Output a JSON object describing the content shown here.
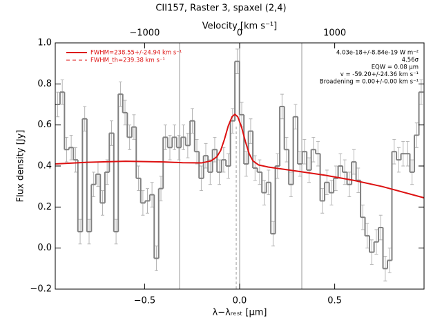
{
  "chart_data": {
    "type": "spectrum",
    "title": "CII157, Raster 3, spaxel (2,4)",
    "x_label": "λ−λᵣₑₛₜ [μm]",
    "x2_label": "Velocity [km s⁻¹]",
    "y_label": "Flux density [Jy]",
    "xlim": [
      -0.97,
      0.97
    ],
    "x2lim": [
      -1940,
      1940
    ],
    "ylim": [
      -0.2,
      1.0
    ],
    "xticks": [
      {
        "value": -0.5,
        "label": "−0.5"
      },
      {
        "value": 0,
        "label": "0.0"
      },
      0.5
    ],
    "x2ticks": [
      {
        "value": -1000,
        "label": "−1000"
      },
      0,
      1000
    ],
    "yticks": [
      {
        "value": -0.2,
        "label": "−0.2"
      },
      {
        "value": 0,
        "label": "0.0"
      },
      0.2,
      0.4,
      0.6,
      0.8,
      {
        "value": 1,
        "label": "1.0"
      }
    ],
    "x": [
      -0.957,
      -0.933,
      -0.91,
      -0.886,
      -0.863,
      -0.839,
      -0.815,
      -0.792,
      -0.768,
      -0.745,
      -0.721,
      -0.697,
      -0.674,
      -0.65,
      -0.627,
      -0.603,
      -0.579,
      -0.556,
      -0.532,
      -0.509,
      -0.485,
      -0.461,
      -0.438,
      -0.414,
      -0.391,
      -0.367,
      -0.343,
      -0.32,
      -0.296,
      -0.273,
      -0.249,
      -0.225,
      -0.202,
      -0.178,
      -0.155,
      -0.131,
      -0.107,
      -0.084,
      -0.06,
      -0.037,
      -0.013,
      0.011,
      0.034,
      0.058,
      0.081,
      0.105,
      0.129,
      0.152,
      0.176,
      0.199,
      0.223,
      0.247,
      0.27,
      0.294,
      0.317,
      0.341,
      0.365,
      0.388,
      0.412,
      0.435,
      0.459,
      0.483,
      0.506,
      0.53,
      0.553,
      0.577,
      0.601,
      0.624,
      0.648,
      0.671,
      0.695,
      0.719,
      0.742,
      0.766,
      0.789,
      0.813,
      0.837,
      0.86,
      0.884,
      0.907,
      0.931,
      0.955
    ],
    "series": [
      {
        "name": "spectrum",
        "color": "#808080",
        "error_color": "#b4b4b4",
        "error": 0.06,
        "values": [
          0.7,
          0.76,
          0.48,
          0.49,
          0.43,
          0.08,
          0.63,
          0.08,
          0.31,
          0.36,
          0.22,
          0.37,
          0.56,
          0.08,
          0.75,
          0.66,
          0.54,
          0.59,
          0.34,
          0.22,
          0.23,
          0.26,
          -0.05,
          0.29,
          0.54,
          0.49,
          0.54,
          0.49,
          0.54,
          0.5,
          0.62,
          0.47,
          0.34,
          0.45,
          0.37,
          0.48,
          0.37,
          0.43,
          0.4,
          0.62,
          0.91,
          0.65,
          0.41,
          0.57,
          0.39,
          0.37,
          0.27,
          0.32,
          0.07,
          0.4,
          0.69,
          0.48,
          0.31,
          0.64,
          0.41,
          0.47,
          0.38,
          0.48,
          0.46,
          0.23,
          0.32,
          0.27,
          0.34,
          0.4,
          0.37,
          0.31,
          0.42,
          0.33,
          0.15,
          0.06,
          -0.02,
          0.03,
          0.1,
          -0.1,
          -0.06,
          0.47,
          0.43,
          0.46,
          0.46,
          0.37,
          0.55,
          0.76
        ]
      }
    ],
    "fit": {
      "name": "FWHM=238.55+/-24.94 km s⁻¹",
      "color": "#dd1111",
      "x": [
        -0.97,
        -0.8,
        -0.6,
        -0.4,
        -0.3,
        -0.2,
        -0.15,
        -0.12,
        -0.1,
        -0.08,
        -0.06,
        -0.04,
        -0.025,
        -0.01,
        0.01,
        0.03,
        0.05,
        0.07,
        0.1,
        0.15,
        0.3,
        0.45,
        0.6,
        0.75,
        0.97
      ],
      "values": [
        0.41,
        0.418,
        0.423,
        0.42,
        0.416,
        0.415,
        0.425,
        0.445,
        0.475,
        0.53,
        0.595,
        0.64,
        0.652,
        0.64,
        0.59,
        0.52,
        0.46,
        0.425,
        0.405,
        0.395,
        0.375,
        0.355,
        0.33,
        0.3,
        0.245
      ]
    },
    "fwhm_th": {
      "name": "FWHM_th=239.38 km s⁻¹",
      "color": "#dd1111"
    },
    "center_line": -0.018,
    "vlines": [
      -0.316,
      0,
      0.327
    ],
    "annotations": [
      "4.03e-18+/-8.84e-19 W m⁻²",
      "4.56σ",
      "EQW = 0.08 μm",
      "v = -59.20+/-24.36 km s⁻¹",
      "Broadening = 0.00+/-0.00 km s⁻¹"
    ]
  }
}
